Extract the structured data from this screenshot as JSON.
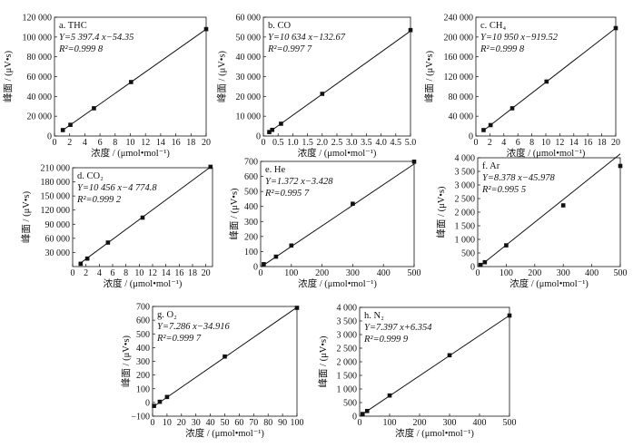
{
  "chart_data": [
    {
      "id": "a",
      "type": "scatter",
      "panel_label": "a. THC",
      "equation": "Y=5 397.4 x−54.35",
      "r2": "R²=0.999 8",
      "xlabel": "浓度 / (μmol•mol⁻¹)",
      "ylabel": "峰面 / (μV•s)",
      "xlim": [
        0,
        20
      ],
      "ylim": [
        0,
        120000
      ],
      "xticks": [
        0,
        2,
        4,
        6,
        8,
        10,
        12,
        14,
        16,
        18,
        20
      ],
      "xtick_labels": [
        "0",
        "2",
        "4",
        "6",
        "8",
        "10",
        "12",
        "14",
        "16",
        "18",
        "20"
      ],
      "yticks": [
        0,
        20000,
        40000,
        60000,
        80000,
        100000,
        120000
      ],
      "ytick_labels": [
        "0",
        "20 000",
        "40 000",
        "60 000",
        "80 000",
        "100 000",
        "120 000"
      ],
      "x": [
        1.1,
        2.1,
        5.2,
        10.1,
        20.0
      ],
      "y": [
        6000,
        11300,
        28000,
        54500,
        108000
      ],
      "fit": {
        "slope": 5397.4,
        "intercept": -54.35
      }
    },
    {
      "id": "b",
      "type": "scatter",
      "panel_label": "b. CO",
      "equation": "Y=10 634 x−132.67",
      "r2": "R²=0.997 7",
      "xlabel": "浓度 / (μmol•mol⁻¹)",
      "ylabel": "峰面 / (μV•s)",
      "xlim": [
        0,
        5.0
      ],
      "ylim": [
        0,
        60000
      ],
      "xticks": [
        0,
        0.5,
        1.0,
        1.5,
        2.0,
        2.5,
        3.0,
        3.5,
        4.0,
        4.5,
        5.0
      ],
      "xtick_labels": [
        "0",
        "0.5",
        "1.0",
        "1.5",
        "2.0",
        "2.5",
        "3.0",
        "3.5",
        "4.0",
        "4.5",
        "5.0"
      ],
      "yticks": [
        0,
        10000,
        20000,
        30000,
        40000,
        50000,
        60000
      ],
      "ytick_labels": [
        "0",
        "10 000",
        "20 000",
        "30 000",
        "40 000",
        "50 000",
        "60 000"
      ],
      "x": [
        0.2,
        0.3,
        0.6,
        2.0,
        5.0
      ],
      "y": [
        2000,
        3100,
        6200,
        21300,
        53500
      ],
      "fit": {
        "slope": 10634,
        "intercept": -132.67
      }
    },
    {
      "id": "c",
      "type": "scatter",
      "panel_label": "c. CH₄",
      "equation": "Y=10 950 x−919.52",
      "r2": "R²=0.999 8",
      "xlabel": "浓度 / (μmol•mol⁻¹)",
      "ylabel": "峰面 / (μV•s)",
      "xlim": [
        0,
        20
      ],
      "ylim": [
        0,
        240000
      ],
      "xticks": [
        0,
        2,
        4,
        6,
        8,
        10,
        12,
        14,
        16,
        18,
        20
      ],
      "xtick_labels": [
        "0",
        "2",
        "4",
        "6",
        "8",
        "10",
        "12",
        "14",
        "16",
        "18",
        "20"
      ],
      "yticks": [
        0,
        40000,
        80000,
        120000,
        160000,
        200000,
        240000
      ],
      "ytick_labels": [
        "0",
        "40 000",
        "80 000",
        "120 000",
        "160 000",
        "200 000",
        "240 000"
      ],
      "x": [
        1.1,
        2.1,
        5.2,
        10.1,
        20.0
      ],
      "y": [
        12000,
        22000,
        56000,
        110000,
        218000
      ],
      "fit": {
        "slope": 10950,
        "intercept": -919.52
      }
    },
    {
      "id": "d",
      "type": "scatter",
      "panel_label": "d. CO₂",
      "equation": "Y=10 456 x−4 774.8",
      "r2": "R²=0.999 2",
      "xlabel": "浓度 / (μmol•mol⁻¹)",
      "ylabel": "峰面 / (μV•s)",
      "xlim": [
        0,
        21
      ],
      "ylim": [
        0,
        210000
      ],
      "xticks": [
        0,
        2,
        4,
        6,
        8,
        10,
        12,
        14,
        16,
        18,
        20
      ],
      "xtick_labels": [
        "0",
        "2",
        "4",
        "6",
        "8",
        "10",
        "12",
        "14",
        "16",
        "18",
        "20"
      ],
      "yticks": [
        30000,
        60000,
        90000,
        120000,
        150000,
        180000,
        210000
      ],
      "ytick_labels": [
        "30 000",
        "60 000",
        "90 000",
        "120 000",
        "150 000",
        "180 000",
        "210 000"
      ],
      "x": [
        1.2,
        2.2,
        5.3,
        10.5,
        20.7
      ],
      "y": [
        6000,
        17000,
        51000,
        104000,
        212000
      ],
      "fit": {
        "slope": 10456,
        "intercept": -4774.8
      }
    },
    {
      "id": "e",
      "type": "scatter",
      "panel_label": "e. He",
      "equation": "Y=1.372 x−3.428",
      "r2": "R²=0.995 7",
      "xlabel": "浓度 / (μmol•mol⁻¹)",
      "ylabel": "峰面 / (μV•s)",
      "xlim": [
        0,
        500
      ],
      "ylim": [
        0,
        700
      ],
      "xticks": [
        0,
        100,
        200,
        300,
        400,
        500
      ],
      "xtick_labels": [
        "0",
        "100",
        "200",
        "300",
        "400",
        "500"
      ],
      "yticks": [
        0,
        100,
        200,
        300,
        400,
        500,
        600,
        700
      ],
      "ytick_labels": [
        "0",
        "100",
        "200",
        "300",
        "400",
        "500",
        "600",
        "700"
      ],
      "x": [
        10,
        50,
        100,
        300,
        500
      ],
      "y": [
        16,
        66,
        140,
        418,
        698
      ],
      "fit": {
        "slope": 1.372,
        "intercept": -3.428
      }
    },
    {
      "id": "f",
      "type": "scatter",
      "panel_label": "f. Ar",
      "equation": "Y=8.378 x−45.978",
      "r2": "R²=0.995 5",
      "xlabel": "浓度 / (μmol•mol⁻¹)",
      "ylabel": "峰面 / (μV•s)",
      "xlim": [
        0,
        500
      ],
      "ylim": [
        0,
        4000
      ],
      "xticks": [
        0,
        100,
        200,
        300,
        400,
        500
      ],
      "xtick_labels": [
        "0",
        "100",
        "200",
        "300",
        "400",
        "500"
      ],
      "yticks": [
        0,
        500,
        1000,
        1500,
        2000,
        2500,
        3000,
        3500,
        4000
      ],
      "ytick_labels": [
        "0",
        "500",
        "1 000",
        "1 500",
        "2 000",
        "2 500",
        "3 000",
        "3 500",
        "4 000"
      ],
      "x": [
        10,
        25,
        100,
        300,
        500
      ],
      "y": [
        60,
        160,
        780,
        2250,
        3700
      ],
      "fit": {
        "slope": 8.378,
        "intercept": -45.978
      }
    },
    {
      "id": "g",
      "type": "scatter",
      "panel_label": "g. O₂",
      "equation": "Y=7.286 x−34.916",
      "r2": "R²=0.999 7",
      "xlabel": "浓度 / (μmol•mol⁻¹)",
      "ylabel": "峰面 / (μV•s)",
      "xlim": [
        0,
        100
      ],
      "ylim": [
        -100,
        700
      ],
      "xticks": [
        0,
        10,
        20,
        30,
        40,
        50,
        60,
        70,
        80,
        90,
        100
      ],
      "xtick_labels": [
        "0",
        "10",
        "20",
        "30",
        "40",
        "50",
        "60",
        "70",
        "80",
        "90",
        "100"
      ],
      "yticks": [
        -100,
        0,
        100,
        200,
        300,
        400,
        500,
        600,
        700
      ],
      "ytick_labels": [
        "−100",
        "0",
        "100",
        "200",
        "300",
        "400",
        "500",
        "600",
        "700"
      ],
      "x": [
        1,
        5,
        10,
        50,
        100
      ],
      "y": [
        -25,
        5,
        40,
        335,
        690
      ],
      "fit": {
        "slope": 7.286,
        "intercept": -34.916
      }
    },
    {
      "id": "h",
      "type": "scatter",
      "panel_label": "h. N₂",
      "equation": "Y=7.397 x+6.354",
      "r2": "R²=0.999 9",
      "xlabel": "浓度 / (μmol•mol⁻¹)",
      "ylabel": "峰面 / (μV•s)",
      "xlim": [
        0,
        500
      ],
      "ylim": [
        0,
        4000
      ],
      "xticks": [
        0,
        100,
        200,
        300,
        400,
        500
      ],
      "xtick_labels": [
        "0",
        "100",
        "200",
        "300",
        "400",
        "500"
      ],
      "yticks": [
        0,
        500,
        1000,
        1500,
        2000,
        2500,
        3000,
        3500,
        4000
      ],
      "ytick_labels": [
        "0",
        "500",
        "1 000",
        "1 500",
        "2 000",
        "2 500",
        "3 000",
        "3 500",
        "4 000"
      ],
      "x": [
        10,
        25,
        100,
        300,
        500
      ],
      "y": [
        80,
        190,
        760,
        2240,
        3700
      ],
      "fit": {
        "slope": 7.397,
        "intercept": 6.354
      }
    }
  ]
}
